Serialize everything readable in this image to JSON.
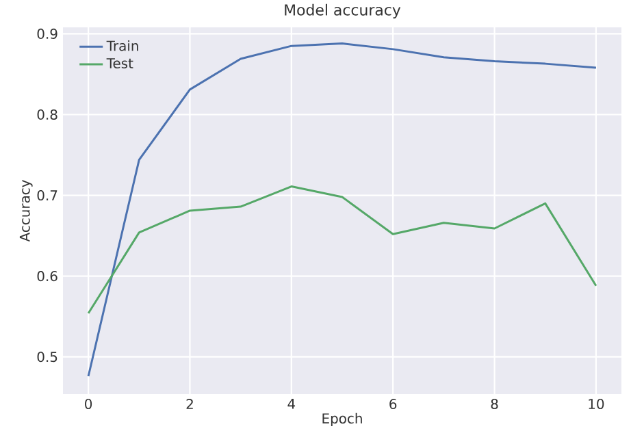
{
  "chart_data": {
    "type": "line",
    "title": "Model accuracy",
    "xlabel": "Epoch",
    "ylabel": "Accuracy",
    "x": [
      0,
      1,
      2,
      3,
      4,
      5,
      6,
      7,
      8,
      9,
      10
    ],
    "series": [
      {
        "name": "Train",
        "color": "#4c72b0",
        "values": [
          0.476,
          0.744,
          0.831,
          0.869,
          0.885,
          0.888,
          0.881,
          0.871,
          0.866,
          0.863,
          0.858
        ]
      },
      {
        "name": "Test",
        "color": "#55a868",
        "values": [
          0.554,
          0.654,
          0.681,
          0.686,
          0.711,
          0.698,
          0.652,
          0.666,
          0.659,
          0.69,
          0.588
        ]
      }
    ],
    "xlim": [
      -0.5,
      10.5
    ],
    "ylim": [
      0.454,
      0.908
    ],
    "xticks": [
      0,
      2,
      4,
      6,
      8,
      10
    ],
    "yticks": [
      0.5,
      0.6,
      0.7,
      0.8,
      0.9
    ],
    "grid": true,
    "legend": "top left",
    "marker": "none",
    "line_style": "solid"
  }
}
